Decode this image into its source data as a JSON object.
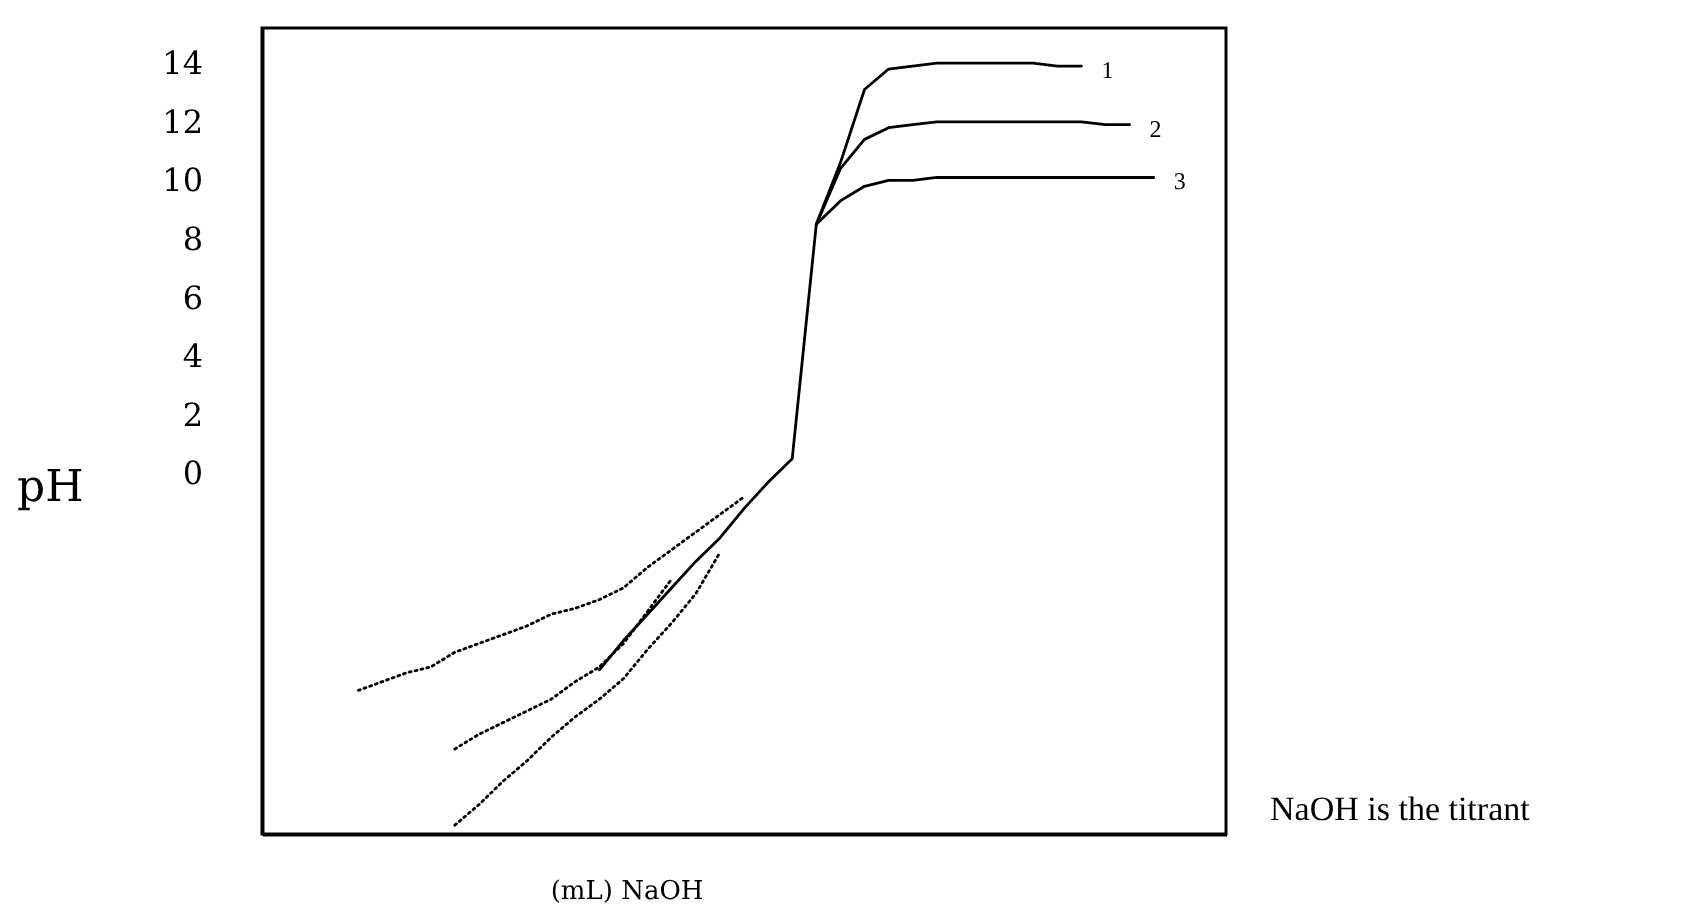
{
  "chart_data": {
    "type": "line",
    "xlabel": "(mL) NaOH",
    "ylabel": "pH",
    "annotations": [
      "NaOH is the titrant"
    ],
    "categories": [
      null,
      null,
      null,
      null,
      null,
      null,
      null,
      null,
      null,
      null,
      null,
      null,
      null,
      null,
      null,
      null,
      null,
      null,
      null,
      null,
      null,
      null,
      null,
      null,
      null,
      null,
      null,
      null,
      null,
      null,
      null,
      null,
      null,
      null,
      null,
      null,
      null,
      null,
      null,
      null,
      null
    ],
    "ylim": [
      -12.3,
      15.2
    ],
    "yticks": [
      0,
      2,
      4,
      6,
      8,
      10,
      12,
      14
    ],
    "tick_labels": "y",
    "series": [
      {
        "name": "1",
        "color": "#000000",
        "line_style": "solid",
        "values": [
          null,
          null,
          null,
          null,
          null,
          null,
          null,
          null,
          null,
          null,
          null,
          null,
          null,
          null,
          -6.7,
          -5.7,
          -4.8,
          -3.9,
          -3.0,
          -2.2,
          -1.2,
          -0.3,
          0.5,
          8.5,
          10.6,
          13.1,
          13.8,
          13.9,
          14.0,
          14.0,
          14.0,
          14.0,
          14.0,
          13.9,
          13.9,
          null,
          null,
          null,
          null,
          null,
          null
        ]
      },
      {
        "name": "2",
        "color": "#000000",
        "line_style": "solid",
        "values": [
          null,
          null,
          null,
          null,
          null,
          null,
          null,
          null,
          null,
          null,
          null,
          null,
          null,
          null,
          null,
          null,
          null,
          null,
          null,
          null,
          null,
          null,
          null,
          8.5,
          10.4,
          11.4,
          11.8,
          11.9,
          12.0,
          12.0,
          12.0,
          12.0,
          12.0,
          12.0,
          12.0,
          11.9,
          11.9,
          null,
          null,
          null,
          null
        ]
      },
      {
        "name": "3",
        "color": "#000000",
        "line_style": "solid",
        "values": [
          null,
          null,
          null,
          null,
          null,
          null,
          null,
          null,
          null,
          null,
          null,
          null,
          null,
          null,
          null,
          null,
          null,
          null,
          null,
          null,
          null,
          null,
          null,
          8.5,
          9.3,
          9.8,
          10.0,
          10.0,
          10.1,
          10.1,
          10.1,
          10.1,
          10.1,
          10.1,
          10.1,
          10.1,
          10.1,
          10.1,
          null,
          null,
          null
        ]
      },
      {
        "color": "#000000",
        "line_style": "dotted",
        "values": [
          null,
          null,
          null,
          null,
          -7.4,
          -7.1,
          -6.8,
          -6.6,
          -6.1,
          -5.8,
          -5.5,
          -5.2,
          -4.8,
          -4.6,
          -4.3,
          -3.9,
          -3.2,
          -2.6,
          -2.0,
          -1.4,
          -0.8,
          null,
          null,
          null,
          null,
          null,
          null,
          null,
          null,
          null,
          null,
          null,
          null,
          null,
          null,
          null,
          null,
          null,
          null,
          null,
          null
        ]
      },
      {
        "color": "#000000",
        "line_style": "dotted",
        "values": [
          null,
          null,
          null,
          null,
          null,
          null,
          null,
          null,
          -9.4,
          -8.9,
          -8.5,
          -8.1,
          -7.7,
          -7.1,
          -6.6,
          -5.8,
          -4.7,
          -3.6,
          null,
          null,
          null,
          null,
          null,
          null,
          null,
          null,
          null,
          null,
          null,
          null,
          null,
          null,
          null,
          null,
          null,
          null,
          null,
          null,
          null,
          null,
          null
        ]
      },
      {
        "color": "#000000",
        "line_style": "dotted",
        "values": [
          null,
          null,
          null,
          null,
          null,
          null,
          null,
          null,
          -12.0,
          -11.3,
          -10.5,
          -9.8,
          -9.0,
          -8.3,
          -7.7,
          -7.0,
          -6.0,
          -5.1,
          -4.1,
          -2.7,
          null,
          null,
          null,
          null,
          null,
          null,
          null,
          null,
          null,
          null,
          null,
          null,
          null,
          null,
          null,
          null,
          null,
          null,
          null,
          null,
          null
        ]
      }
    ]
  }
}
